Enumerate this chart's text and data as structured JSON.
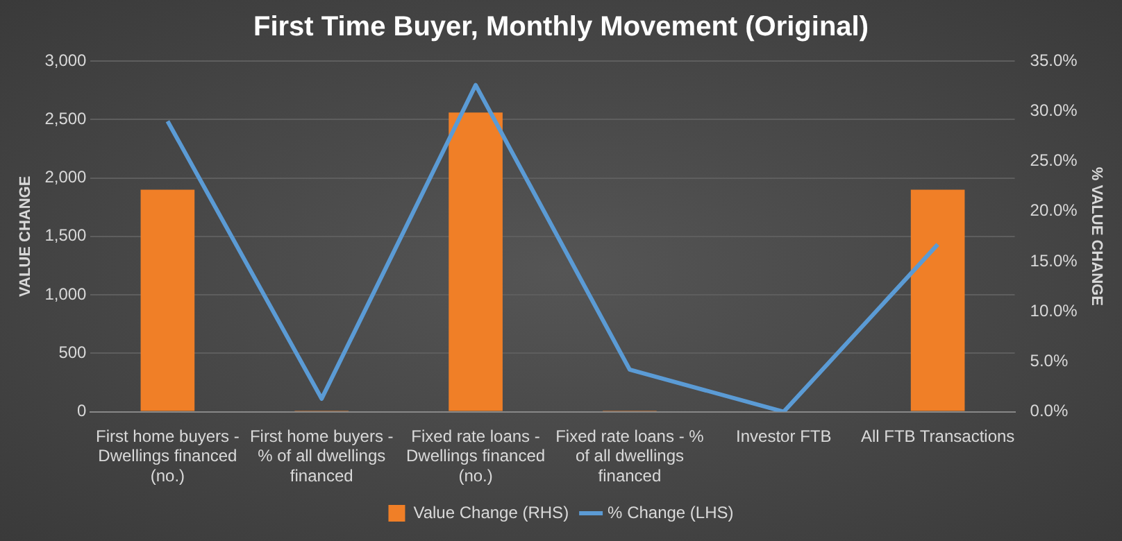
{
  "chart_data": {
    "type": "bar",
    "title": "First Time Buyer, Monthly Movement (Original)",
    "ylabel": "VALUE CHANGE",
    "y2label": "% VALUE CHANGE",
    "categories": [
      "First home buyers - Dwellings financed (no.)",
      "First home buyers - % of all dwellings financed",
      "Fixed rate loans - Dwellings financed (no.)",
      "Fixed rate loans - % of all dwellings financed",
      "Investor FTB",
      "All FTB Transactions"
    ],
    "series": [
      {
        "name": "Value Change (RHS)",
        "color": "#f07f27",
        "values": [
          1900,
          10,
          2560,
          10,
          0,
          1900
        ]
      },
      {
        "name": "% Change (LHS)",
        "type": "line",
        "axis": "y2",
        "color": "#5b9bd5",
        "values": [
          29.0,
          1.3,
          32.6,
          4.2,
          0.0,
          16.7
        ]
      }
    ],
    "ylim": [
      0,
      3000
    ],
    "yticks": [
      0,
      500,
      {
        "value": 1000,
        "label": "1,000"
      },
      {
        "value": 1500,
        "label": "1,500"
      },
      {
        "value": 2000,
        "label": "2,000"
      },
      {
        "value": 2500,
        "label": "2,500"
      },
      {
        "value": 3000,
        "label": "3,000"
      }
    ],
    "y2lim": [
      0,
      35
    ],
    "y2ticks": [
      {
        "value": 0,
        "label": "0.0%"
      },
      {
        "value": 5,
        "label": "5.0%"
      },
      {
        "value": 10,
        "label": "10.0%"
      },
      {
        "value": 15,
        "label": "15.0%"
      },
      {
        "value": 20,
        "label": "20.0%"
      },
      {
        "value": 25,
        "label": "25.0%"
      },
      {
        "value": 30,
        "label": "30.0%"
      },
      {
        "value": 35,
        "label": "35.0%"
      }
    ],
    "grid": "y",
    "legend": "bottom",
    "marker": "none",
    "line_style": "solid"
  }
}
